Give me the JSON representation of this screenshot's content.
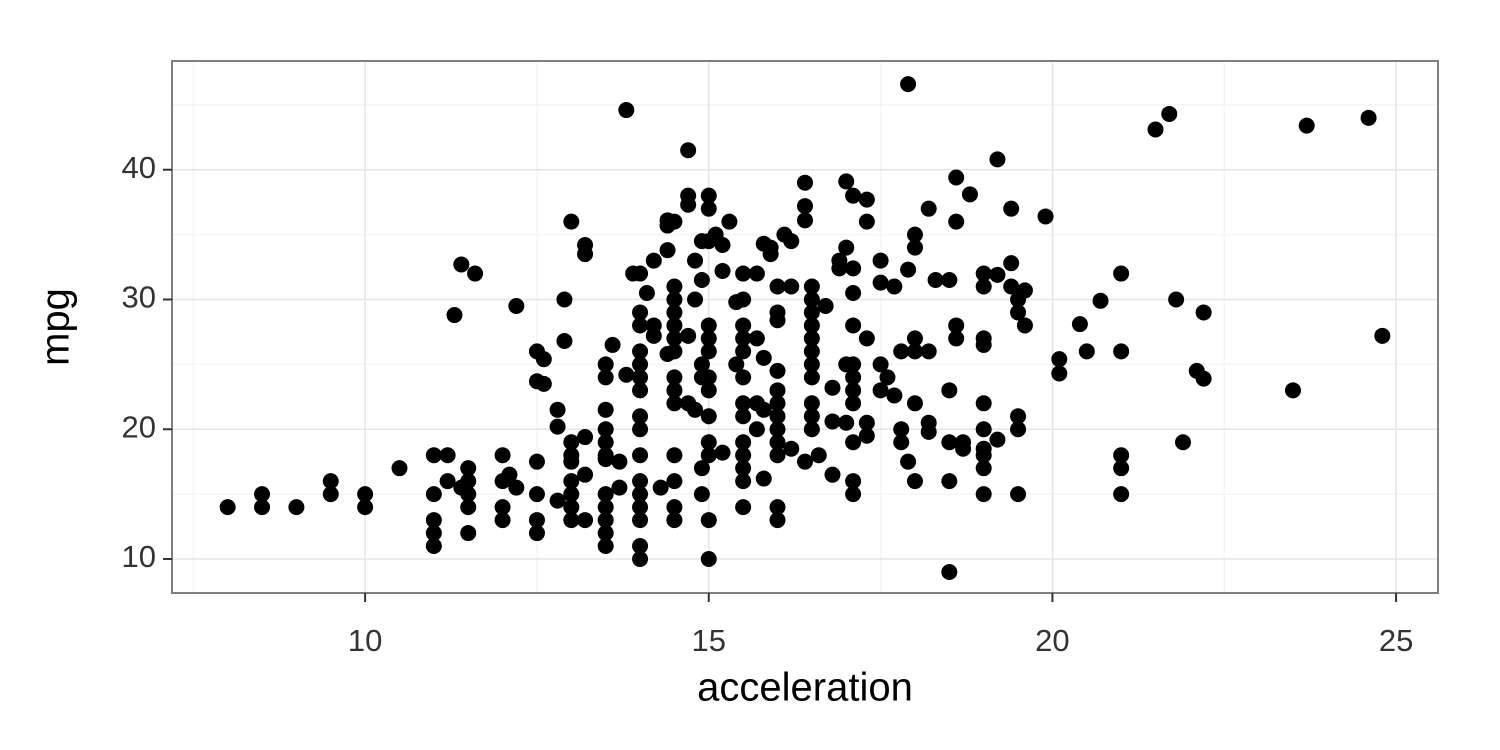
{
  "chart_data": {
    "type": "scatter",
    "x_label": "acceleration",
    "y_label": "mpg",
    "color": "#000000",
    "xlim": [
      7.19,
      25.61
    ],
    "ylim": [
      7.38,
      48.38
    ],
    "xticks": [
      10,
      15,
      20,
      25
    ],
    "yticks": [
      10,
      20,
      30,
      40
    ],
    "minor_xticks": [
      7.5,
      12.5,
      17.5,
      22.5
    ],
    "minor_yticks": [
      15,
      25,
      35,
      45
    ],
    "grid": true,
    "x": [
      8,
      8.5,
      8.5,
      9,
      9.5,
      9.5,
      10,
      10,
      10.5,
      11,
      11,
      11,
      11,
      11,
      11.2,
      11.2,
      11.5,
      11.5,
      11.5,
      11.5,
      11.5,
      11.4,
      11.3,
      11.4,
      11.6,
      12,
      12,
      12,
      12,
      12.1,
      12.2,
      12.2,
      12.5,
      12.5,
      12.6,
      12.6,
      12.5,
      12.5,
      12.5,
      12.5,
      12.8,
      12.8,
      12.8,
      12.9,
      12.9,
      13,
      13,
      13,
      13,
      13,
      13,
      13,
      13,
      13.2,
      13.2,
      13.2,
      13.2,
      13.2,
      13.5,
      13.5,
      13.5,
      13.5,
      13.5,
      13.5,
      13.5,
      13.5,
      13.5,
      13.5,
      13.5,
      13.5,
      13.6,
      13.7,
      13.7,
      13.8,
      13.8,
      13.9,
      14,
      14,
      14,
      14,
      14,
      14,
      14,
      14,
      14,
      14,
      14,
      14,
      14,
      14,
      14,
      14,
      14.1,
      14.2,
      14.2,
      14.2,
      14.3,
      14.4,
      14.4,
      14.4,
      14.4,
      14.5,
      14.5,
      14.5,
      14.5,
      14.5,
      14.5,
      14.5,
      14.5,
      14.5,
      14.5,
      14.5,
      14.5,
      14.5,
      14.5,
      14.7,
      14.7,
      14.7,
      14.7,
      14.7,
      14.8,
      14.8,
      14.8,
      14.9,
      14.9,
      14.9,
      14.9,
      14.9,
      14.9,
      15,
      15,
      15,
      15,
      15,
      15,
      15,
      15,
      15,
      15,
      15,
      15,
      15,
      15.1,
      15.2,
      15.2,
      15.2,
      15.3,
      15.4,
      15.4,
      15.5,
      15.5,
      15.5,
      15.5,
      15.5,
      15.5,
      15.5,
      15.5,
      15.5,
      15.5,
      15.5,
      15.5,
      15.5,
      15.7,
      15.7,
      15.7,
      15.7,
      15.8,
      15.8,
      15.8,
      15.8,
      15.9,
      15.9,
      16,
      16,
      16,
      16,
      16,
      16,
      16,
      16,
      16,
      16,
      16,
      16,
      16.1,
      16.2,
      16.2,
      16.2,
      16.4,
      16.4,
      16.4,
      16.4,
      16.5,
      16.5,
      16.5,
      16.5,
      16.5,
      16.5,
      16.5,
      16.5,
      16.5,
      16.5,
      16.5,
      16.6,
      16.7,
      16.8,
      16.8,
      16.8,
      16.9,
      16.9,
      17,
      17,
      17,
      17,
      17.1,
      17.1,
      17.1,
      17.1,
      17.1,
      17.1,
      17.1,
      17.1,
      17.1,
      17.1,
      17.1,
      17.3,
      17.3,
      17.3,
      17.3,
      17.3,
      17.5,
      17.5,
      17.5,
      17.5,
      17.6,
      17.7,
      17.7,
      17.8,
      17.8,
      17.8,
      17.9,
      17.9,
      17.9,
      18,
      18,
      18,
      18,
      18,
      18,
      18.2,
      18.2,
      18.2,
      18.2,
      18.3,
      18.5,
      18.5,
      18.5,
      18.5,
      18.5,
      18.6,
      18.6,
      18.6,
      18.6,
      18.7,
      18.7,
      18.8,
      19,
      19,
      19,
      19,
      19,
      19,
      19,
      19,
      19,
      19,
      19.2,
      19.2,
      19.2,
      19.4,
      19.4,
      19.4,
      19.5,
      19.5,
      19.5,
      19.5,
      19.5,
      19.6,
      19.6,
      19.9,
      20.1,
      20.1,
      20.4,
      20.5,
      20.7,
      21,
      21,
      21,
      21,
      21,
      21.5,
      21.7,
      21.8,
      21.9,
      22.1,
      22.2,
      22.2,
      23.5,
      23.7,
      24.6,
      24.8
    ],
    "values": [
      14,
      15,
      14,
      14,
      16,
      15,
      15,
      14,
      17,
      18,
      15,
      13,
      12,
      11,
      18,
      16,
      17,
      16,
      15,
      14,
      12,
      15.5,
      28.8,
      32.7,
      32,
      18,
      16,
      14,
      13,
      16.5,
      15.5,
      29.5,
      26,
      23.7,
      23.5,
      25.4,
      17.5,
      15,
      13,
      12,
      21.5,
      20.2,
      14.5,
      26.8,
      30,
      36,
      19,
      18,
      17.5,
      16,
      15,
      14,
      13,
      34.2,
      33.5,
      19.4,
      16.5,
      13,
      25,
      24,
      21.5,
      20,
      19,
      18,
      17.7,
      15,
      14,
      13,
      12,
      11,
      26.5,
      17.5,
      15.5,
      44.6,
      24.2,
      32,
      32,
      29,
      28,
      26,
      25,
      24,
      23,
      21,
      20,
      18,
      16,
      15,
      14,
      13,
      11,
      10,
      30.5,
      33,
      28,
      27.2,
      15.5,
      36.1,
      35.7,
      33.8,
      25.8,
      36,
      31,
      30,
      29,
      28,
      27,
      26,
      24,
      23,
      22,
      18,
      16,
      14,
      13,
      41.5,
      38,
      37.3,
      27.2,
      22,
      33,
      30,
      21.5,
      34.5,
      31.5,
      25,
      24,
      17,
      15,
      38,
      37,
      34.5,
      28,
      27,
      26,
      24,
      23,
      21,
      19,
      18,
      13,
      10,
      35,
      34.2,
      32.2,
      18.2,
      36,
      29.8,
      25,
      32,
      30,
      28,
      27,
      26,
      24,
      22,
      21,
      19,
      18,
      17,
      16,
      14,
      32,
      27,
      22,
      20,
      34.3,
      25.5,
      21.5,
      16.2,
      34,
      33.5,
      31,
      29,
      28.4,
      24.5,
      23,
      22,
      21,
      20,
      19,
      18,
      14,
      13,
      35,
      34.5,
      31,
      18.5,
      39,
      37.2,
      36.1,
      17.5,
      31,
      30,
      29,
      28,
      27,
      26,
      25,
      24,
      22,
      21,
      20,
      18,
      29.5,
      23.2,
      20.6,
      16.5,
      33,
      32.4,
      39.1,
      34,
      25,
      20.5,
      38,
      32.4,
      30.5,
      28,
      25,
      24,
      23,
      22,
      19,
      16,
      15,
      36,
      37.7,
      27,
      20.5,
      19.5,
      33,
      31.3,
      25,
      23,
      24,
      31,
      22.6,
      26,
      20,
      19,
      46.6,
      32.3,
      17.5,
      35,
      34,
      27,
      26,
      22,
      16,
      37,
      26,
      20.5,
      19.8,
      31.5,
      31.5,
      23,
      19,
      16,
      9,
      39.4,
      36,
      28,
      27,
      19,
      18.5,
      38.1,
      32,
      31,
      27,
      26.5,
      22,
      20,
      18.5,
      18,
      17,
      15,
      40.8,
      31.9,
      19.2,
      37,
      32.8,
      31,
      30,
      29,
      21,
      20,
      15,
      30.7,
      28,
      36.4,
      25.4,
      24.3,
      28.1,
      26,
      29.9,
      32,
      26,
      18,
      17,
      15,
      43.1,
      44.3,
      30,
      19,
      24.5,
      29,
      23.9,
      23,
      43.4,
      44,
      27.2
    ]
  }
}
